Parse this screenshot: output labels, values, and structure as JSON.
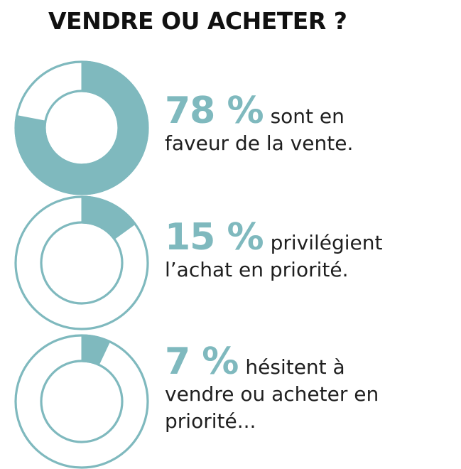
{
  "title": "VENDRE OU ACHETER ?",
  "colors": {
    "accent": "#7fb9be",
    "text": "#1f1f1f"
  },
  "chart_data": [
    {
      "type": "pie",
      "style": "donut",
      "value": 78,
      "label": "78 %",
      "text_lines": [
        "sont  en",
        "faveur de la vente."
      ]
    },
    {
      "type": "pie",
      "style": "donut",
      "value": 15,
      "label": "15 %",
      "text_lines": [
        "privilégient",
        "l’achat en priorité."
      ]
    },
    {
      "type": "pie",
      "style": "donut",
      "value": 7,
      "label": "7 %",
      "text_lines": [
        "hésitent à",
        "vendre ou acheter en",
        "priorité..."
      ]
    }
  ]
}
